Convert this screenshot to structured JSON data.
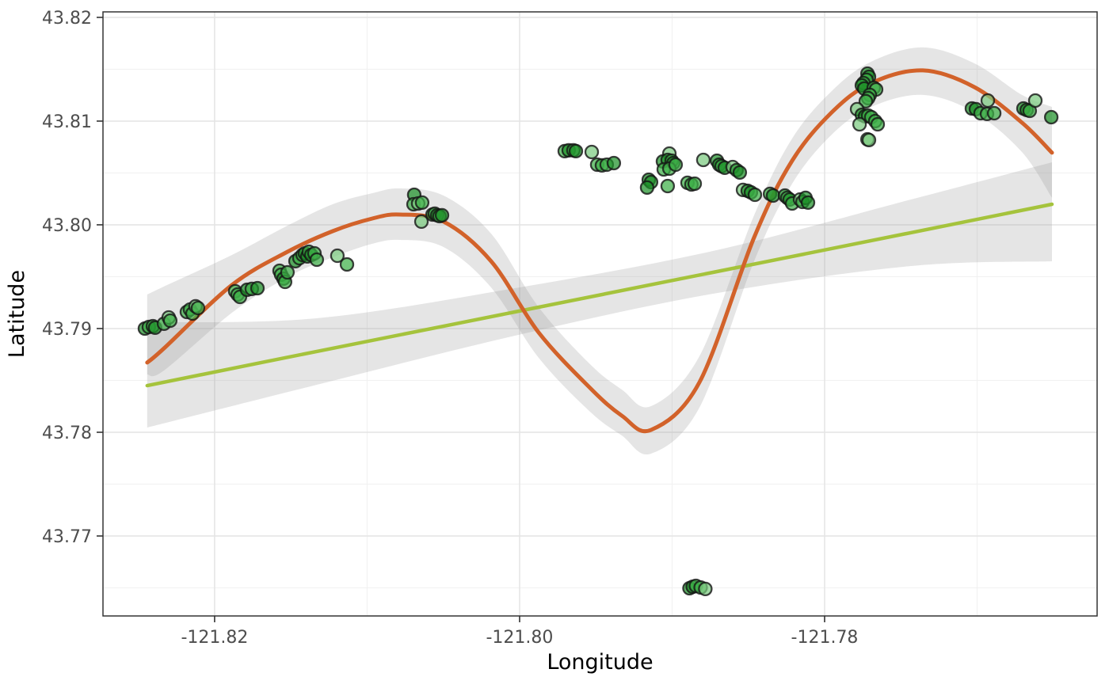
{
  "chart_data": {
    "type": "scatter",
    "title": "",
    "xlabel": "Longitude",
    "ylabel": "Latitude",
    "xlim": [
      -121.82732,
      -121.76213
    ],
    "ylim": [
      43.76229,
      43.82053
    ],
    "grid": true,
    "legend": "none",
    "x_ticks": {
      "values": [
        -121.82,
        -121.8,
        -121.78
      ],
      "labels": [
        "-121.82",
        "-121.80",
        "-121.78"
      ]
    },
    "x_minor": [
      -121.81,
      -121.79,
      -121.77
    ],
    "y_ticks": {
      "values": [
        43.82,
        43.81,
        43.8,
        43.79,
        43.78,
        43.77
      ],
      "labels": [
        "43.82",
        "43.81",
        "43.80",
        "43.79",
        "43.78",
        "43.77"
      ]
    },
    "y_minor": [
      43.815,
      43.805,
      43.795,
      43.785,
      43.775,
      43.765
    ],
    "style": {
      "panel_border": "#333333",
      "grid_major": "#e4e4e4",
      "grid_minor": "#f1f1f1",
      "tick_color": "#333333",
      "tick_label_color": "#4d4d4d",
      "axis_title_color": "#000000",
      "band_color": "#999999",
      "band_opacity": 0.25,
      "point_fills": [
        "#7bcb7f",
        "#3fb048",
        "#1f9129"
      ],
      "point_stroke": "#141414",
      "point_stroke_opacity": 0.8,
      "point_fill_opacity": 0.72,
      "point_radius": 8,
      "loess_color": "#d2622a",
      "loess_width": 5,
      "linear_color": "#a5c33c",
      "linear_width": 4.5
    },
    "points": [
      [
        -121.82457,
        43.79,
        2
      ],
      [
        -121.82431,
        43.79015,
        1
      ],
      [
        -121.82405,
        43.79023,
        1
      ],
      [
        -121.8239,
        43.79008,
        2
      ],
      [
        -121.82332,
        43.79046,
        1
      ],
      [
        -121.82301,
        43.79107,
        0
      ],
      [
        -121.82291,
        43.79076,
        1
      ],
      [
        -121.82182,
        43.7916,
        1
      ],
      [
        -121.82161,
        43.79183,
        1
      ],
      [
        -121.82145,
        43.79145,
        1
      ],
      [
        -121.82125,
        43.79214,
        0
      ],
      [
        -121.82109,
        43.79198,
        1
      ],
      [
        -121.81865,
        43.79359,
        1
      ],
      [
        -121.81849,
        43.79328,
        1
      ],
      [
        -121.81834,
        43.79305,
        1
      ],
      [
        -121.81787,
        43.79374,
        2
      ],
      [
        -121.81756,
        43.79382,
        1
      ],
      [
        -121.81719,
        43.79389,
        2
      ],
      [
        -121.81574,
        43.79557,
        1
      ],
      [
        -121.81564,
        43.79519,
        1
      ],
      [
        -121.81548,
        43.79481,
        2
      ],
      [
        -121.81538,
        43.7945,
        1
      ],
      [
        -121.81522,
        43.79542,
        1
      ],
      [
        -121.8147,
        43.79649,
        2
      ],
      [
        -121.81444,
        43.79679,
        1
      ],
      [
        -121.81423,
        43.7971,
        1
      ],
      [
        -121.81408,
        43.79725,
        2
      ],
      [
        -121.81392,
        43.79695,
        2
      ],
      [
        -121.81382,
        43.7974,
        1
      ],
      [
        -121.81366,
        43.7971,
        2
      ],
      [
        -121.81345,
        43.79725,
        1
      ],
      [
        -121.8133,
        43.79664,
        1
      ],
      [
        -121.81195,
        43.79702,
        0
      ],
      [
        -121.81132,
        43.79618,
        1
      ],
      [
        -121.80691,
        43.8029,
        2
      ],
      [
        -121.80696,
        43.80198,
        1
      ],
      [
        -121.80665,
        43.80206,
        0
      ],
      [
        -121.80639,
        43.80214,
        1
      ],
      [
        -121.80644,
        43.80031,
        0
      ],
      [
        -121.80571,
        43.80099,
        2
      ],
      [
        -121.80556,
        43.80107,
        1
      ],
      [
        -121.8054,
        43.80092,
        2
      ],
      [
        -121.80525,
        43.80084,
        1
      ],
      [
        -121.80509,
        43.80092,
        2
      ],
      [
        -121.79704,
        43.8071,
        1
      ],
      [
        -121.79678,
        43.80718,
        2
      ],
      [
        -121.79647,
        43.80718,
        1
      ],
      [
        -121.79631,
        43.8071,
        2
      ],
      [
        -121.79527,
        43.80702,
        0
      ],
      [
        -121.79491,
        43.8058,
        1
      ],
      [
        -121.7946,
        43.80573,
        1
      ],
      [
        -121.79429,
        43.8058,
        1
      ],
      [
        -121.79382,
        43.80595,
        2
      ],
      [
        -121.79153,
        43.80435,
        2
      ],
      [
        -121.79138,
        43.80412,
        2
      ],
      [
        -121.79164,
        43.80359,
        2
      ],
      [
        -121.79029,
        43.80374,
        1
      ],
      [
        -121.79018,
        43.80687,
        0
      ],
      [
        -121.7906,
        43.80611,
        2
      ],
      [
        -121.79029,
        43.80626,
        2
      ],
      [
        -121.79003,
        43.80618,
        1
      ],
      [
        -121.78992,
        43.80595,
        2
      ],
      [
        -121.79055,
        43.80534,
        1
      ],
      [
        -121.79018,
        43.80542,
        1
      ],
      [
        -121.78977,
        43.8058,
        1
      ],
      [
        -121.78899,
        43.80405,
        1
      ],
      [
        -121.78873,
        43.80389,
        1
      ],
      [
        -121.78852,
        43.80397,
        1
      ],
      [
        -121.78795,
        43.80626,
        0
      ],
      [
        -121.78706,
        43.80618,
        2
      ],
      [
        -121.78691,
        43.8058,
        2
      ],
      [
        -121.78675,
        43.80565,
        1
      ],
      [
        -121.78655,
        43.8055,
        2
      ],
      [
        -121.78603,
        43.80557,
        0
      ],
      [
        -121.78577,
        43.80527,
        2
      ],
      [
        -121.78556,
        43.80504,
        2
      ],
      [
        -121.78535,
        43.80336,
        0
      ],
      [
        -121.78504,
        43.80328,
        2
      ],
      [
        -121.78483,
        43.80313,
        2
      ],
      [
        -121.78457,
        43.8029,
        1
      ],
      [
        -121.78358,
        43.80298,
        1
      ],
      [
        -121.78338,
        43.80282,
        2
      ],
      [
        -121.7826,
        43.80282,
        2
      ],
      [
        -121.78244,
        43.8026,
        1
      ],
      [
        -121.78229,
        43.80244,
        2
      ],
      [
        -121.78213,
        43.80206,
        1
      ],
      [
        -121.78161,
        43.80244,
        0
      ],
      [
        -121.78145,
        43.80221,
        1
      ],
      [
        -121.78125,
        43.8026,
        2
      ],
      [
        -121.78109,
        43.80214,
        2
      ],
      [
        -121.77719,
        43.80824,
        0
      ],
      [
        -121.77719,
        43.81458,
        2
      ],
      [
        -121.77709,
        43.81427,
        2
      ],
      [
        -121.77725,
        43.81397,
        1
      ],
      [
        -121.77745,
        43.81366,
        1
      ],
      [
        -121.77756,
        43.81344,
        2
      ],
      [
        -121.7774,
        43.81313,
        2
      ],
      [
        -121.77678,
        43.81321,
        1
      ],
      [
        -121.77662,
        43.81305,
        1
      ],
      [
        -121.77704,
        43.81252,
        1
      ],
      [
        -121.77714,
        43.81221,
        1
      ],
      [
        -121.7773,
        43.81191,
        1
      ],
      [
        -121.77787,
        43.81115,
        0
      ],
      [
        -121.77756,
        43.81061,
        2
      ],
      [
        -121.77735,
        43.81046,
        2
      ],
      [
        -121.77714,
        43.81053,
        1
      ],
      [
        -121.77694,
        43.81038,
        1
      ],
      [
        -121.77668,
        43.81,
        1
      ],
      [
        -121.77771,
        43.80969,
        0
      ],
      [
        -121.77652,
        43.80969,
        1
      ],
      [
        -121.77709,
        43.80817,
        0
      ],
      [
        -121.77034,
        43.81122,
        2
      ],
      [
        -121.77008,
        43.81115,
        2
      ],
      [
        -121.76977,
        43.81076,
        1
      ],
      [
        -121.76935,
        43.81069,
        1
      ],
      [
        -121.7693,
        43.81198,
        0
      ],
      [
        -121.76888,
        43.81076,
        1
      ],
      [
        -121.76696,
        43.81122,
        2
      ],
      [
        -121.76675,
        43.81107,
        2
      ],
      [
        -121.76655,
        43.81099,
        1
      ],
      [
        -121.76618,
        43.81198,
        0
      ],
      [
        -121.76514,
        43.81038,
        2
      ],
      [
        -121.78886,
        43.76496,
        2
      ],
      [
        -121.78865,
        43.76511,
        2
      ],
      [
        -121.78844,
        43.76519,
        1
      ],
      [
        -121.78813,
        43.76504,
        1
      ],
      [
        -121.78782,
        43.76489,
        0
      ]
    ],
    "loess": {
      "x": [
        -121.82442,
        -121.82332,
        -121.81886,
        -121.81522,
        -121.81226,
        -121.80966,
        -121.80784,
        -121.80499,
        -121.80187,
        -121.79875,
        -121.79538,
        -121.7933,
        -121.79138,
        -121.78821,
        -121.78462,
        -121.78213,
        -121.77953,
        -121.77694,
        -121.77356,
        -121.77018,
        -121.76706,
        -121.76509
      ],
      "y": [
        43.78672,
        43.78809,
        43.7942,
        43.7974,
        43.79939,
        43.80061,
        43.80099,
        43.80031,
        43.79649,
        43.78962,
        43.78427,
        43.7816,
        43.78023,
        43.78481,
        43.79878,
        43.80618,
        43.81084,
        43.81366,
        43.81489,
        43.81328,
        43.80985,
        43.80695
      ],
      "upper": [
        43.79328,
        43.79405,
        43.7971,
        43.79992,
        43.80198,
        43.80305,
        43.80351,
        43.80282,
        43.79916,
        43.79206,
        43.78656,
        43.78412,
        43.78252,
        43.78733,
        43.80092,
        43.80832,
        43.8129,
        43.81573,
        43.8171,
        43.81557,
        43.81252,
        43.81137
      ],
      "lower": [
        43.78557,
        43.78595,
        43.79153,
        43.79496,
        43.79687,
        43.79817,
        43.79855,
        43.79786,
        43.79397,
        43.78718,
        43.78198,
        43.77969,
        43.77794,
        43.78237,
        43.79649,
        43.80397,
        43.8087,
        43.81137,
        43.81252,
        43.81084,
        43.80702,
        43.8026
      ]
    },
    "linear": {
      "x": [
        -121.82442,
        -121.8133,
        -121.80031,
        -121.78732,
        -121.77434,
        -121.76509
      ],
      "y": [
        43.7845,
        43.78779,
        43.7916,
        43.79542,
        43.79924,
        43.80198
      ],
      "upper": [
        43.79061,
        43.79099,
        43.79389,
        43.79748,
        43.80244,
        43.80603
      ],
      "lower": [
        43.78046,
        43.78458,
        43.78931,
        43.79336,
        43.79603,
        43.79649
      ]
    }
  }
}
